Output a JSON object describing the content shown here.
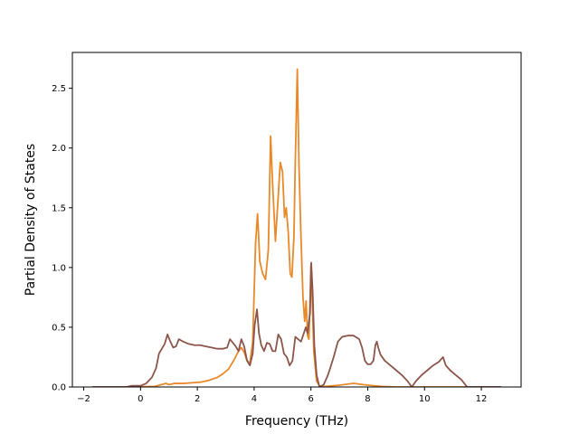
{
  "chart_data": {
    "type": "line",
    "xlabel": "Frequency (THz)",
    "ylabel": "Partial Density of States",
    "xlim": [
      -2.4,
      13.4
    ],
    "ylim": [
      0.0,
      2.8
    ],
    "xticks": [
      -2,
      0,
      2,
      4,
      6,
      8,
      10,
      12
    ],
    "yticks": [
      0.0,
      0.5,
      1.0,
      1.5,
      2.0,
      2.5
    ],
    "xtick_labels": [
      "−2",
      "0",
      "2",
      "4",
      "6",
      "8",
      "10",
      "12"
    ],
    "ytick_labels": [
      "0.0",
      "0.5",
      "1.0",
      "1.5",
      "2.0",
      "2.5"
    ],
    "grid": false,
    "series": [
      {
        "color": "#e8892a",
        "points": [
          [
            -1.7,
            0.0
          ],
          [
            -0.5,
            0.0
          ],
          [
            0.5,
            0.005
          ],
          [
            0.9,
            0.03
          ],
          [
            1.0,
            0.02
          ],
          [
            1.2,
            0.03
          ],
          [
            1.5,
            0.03
          ],
          [
            1.8,
            0.035
          ],
          [
            2.1,
            0.04
          ],
          [
            2.4,
            0.055
          ],
          [
            2.7,
            0.08
          ],
          [
            2.9,
            0.11
          ],
          [
            3.1,
            0.15
          ],
          [
            3.3,
            0.23
          ],
          [
            3.45,
            0.3
          ],
          [
            3.55,
            0.33
          ],
          [
            3.65,
            0.29
          ],
          [
            3.75,
            0.22
          ],
          [
            3.85,
            0.2
          ],
          [
            3.95,
            0.38
          ],
          [
            4.05,
            1.2
          ],
          [
            4.12,
            1.45
          ],
          [
            4.2,
            1.05
          ],
          [
            4.3,
            0.95
          ],
          [
            4.4,
            0.9
          ],
          [
            4.5,
            1.15
          ],
          [
            4.58,
            2.1
          ],
          [
            4.65,
            1.7
          ],
          [
            4.75,
            1.22
          ],
          [
            4.85,
            1.6
          ],
          [
            4.92,
            1.88
          ],
          [
            5.0,
            1.8
          ],
          [
            5.07,
            1.42
          ],
          [
            5.13,
            1.5
          ],
          [
            5.2,
            1.3
          ],
          [
            5.27,
            0.95
          ],
          [
            5.33,
            0.92
          ],
          [
            5.4,
            1.25
          ],
          [
            5.45,
            1.9
          ],
          [
            5.52,
            2.66
          ],
          [
            5.58,
            1.85
          ],
          [
            5.65,
            1.25
          ],
          [
            5.72,
            0.75
          ],
          [
            5.78,
            0.55
          ],
          [
            5.83,
            0.72
          ],
          [
            5.88,
            0.43
          ],
          [
            5.93,
            0.4
          ],
          [
            5.97,
            0.75
          ],
          [
            6.0,
            1.02
          ],
          [
            6.05,
            0.7
          ],
          [
            6.1,
            0.3
          ],
          [
            6.2,
            0.05
          ],
          [
            6.3,
            0.01
          ],
          [
            6.5,
            0.005
          ],
          [
            7.0,
            0.015
          ],
          [
            7.5,
            0.03
          ],
          [
            8.0,
            0.015
          ],
          [
            8.5,
            0.005
          ],
          [
            9.0,
            0.0
          ],
          [
            12.7,
            0.0
          ]
        ]
      },
      {
        "color": "#8c564b",
        "points": [
          [
            -1.7,
            0.0
          ],
          [
            -0.5,
            0.0
          ],
          [
            -0.3,
            0.01
          ],
          [
            0.0,
            0.01
          ],
          [
            0.2,
            0.03
          ],
          [
            0.4,
            0.08
          ],
          [
            0.55,
            0.16
          ],
          [
            0.65,
            0.28
          ],
          [
            0.75,
            0.32
          ],
          [
            0.85,
            0.36
          ],
          [
            0.95,
            0.44
          ],
          [
            1.05,
            0.38
          ],
          [
            1.15,
            0.33
          ],
          [
            1.25,
            0.34
          ],
          [
            1.35,
            0.4
          ],
          [
            1.5,
            0.38
          ],
          [
            1.7,
            0.36
          ],
          [
            1.9,
            0.35
          ],
          [
            2.1,
            0.35
          ],
          [
            2.3,
            0.34
          ],
          [
            2.5,
            0.33
          ],
          [
            2.7,
            0.32
          ],
          [
            2.9,
            0.32
          ],
          [
            3.05,
            0.33
          ],
          [
            3.15,
            0.4
          ],
          [
            3.25,
            0.37
          ],
          [
            3.35,
            0.34
          ],
          [
            3.45,
            0.3
          ],
          [
            3.55,
            0.4
          ],
          [
            3.65,
            0.34
          ],
          [
            3.75,
            0.22
          ],
          [
            3.85,
            0.18
          ],
          [
            3.95,
            0.28
          ],
          [
            4.02,
            0.52
          ],
          [
            4.1,
            0.65
          ],
          [
            4.17,
            0.45
          ],
          [
            4.25,
            0.35
          ],
          [
            4.35,
            0.3
          ],
          [
            4.45,
            0.37
          ],
          [
            4.55,
            0.36
          ],
          [
            4.65,
            0.3
          ],
          [
            4.75,
            0.3
          ],
          [
            4.85,
            0.44
          ],
          [
            4.95,
            0.4
          ],
          [
            5.05,
            0.28
          ],
          [
            5.15,
            0.25
          ],
          [
            5.25,
            0.18
          ],
          [
            5.35,
            0.22
          ],
          [
            5.45,
            0.42
          ],
          [
            5.55,
            0.4
          ],
          [
            5.65,
            0.38
          ],
          [
            5.75,
            0.45
          ],
          [
            5.82,
            0.5
          ],
          [
            5.88,
            0.45
          ],
          [
            5.93,
            0.55
          ],
          [
            5.97,
            0.62
          ],
          [
            6.01,
            1.04
          ],
          [
            6.06,
            0.8
          ],
          [
            6.12,
            0.35
          ],
          [
            6.2,
            0.1
          ],
          [
            6.3,
            0.0
          ],
          [
            6.45,
            0.02
          ],
          [
            6.6,
            0.1
          ],
          [
            6.8,
            0.25
          ],
          [
            6.95,
            0.38
          ],
          [
            7.1,
            0.42
          ],
          [
            7.3,
            0.43
          ],
          [
            7.5,
            0.43
          ],
          [
            7.7,
            0.4
          ],
          [
            7.8,
            0.33
          ],
          [
            7.9,
            0.22
          ],
          [
            8.0,
            0.19
          ],
          [
            8.1,
            0.19
          ],
          [
            8.2,
            0.22
          ],
          [
            8.27,
            0.35
          ],
          [
            8.32,
            0.38
          ],
          [
            8.37,
            0.33
          ],
          [
            8.45,
            0.27
          ],
          [
            8.6,
            0.22
          ],
          [
            8.8,
            0.18
          ],
          [
            9.0,
            0.14
          ],
          [
            9.2,
            0.1
          ],
          [
            9.4,
            0.05
          ],
          [
            9.55,
            0.0
          ],
          [
            9.7,
            0.05
          ],
          [
            9.9,
            0.1
          ],
          [
            10.1,
            0.14
          ],
          [
            10.3,
            0.18
          ],
          [
            10.5,
            0.21
          ],
          [
            10.65,
            0.25
          ],
          [
            10.75,
            0.18
          ],
          [
            10.9,
            0.14
          ],
          [
            11.1,
            0.1
          ],
          [
            11.3,
            0.06
          ],
          [
            11.5,
            0.0
          ],
          [
            12.7,
            0.0
          ]
        ]
      }
    ]
  }
}
